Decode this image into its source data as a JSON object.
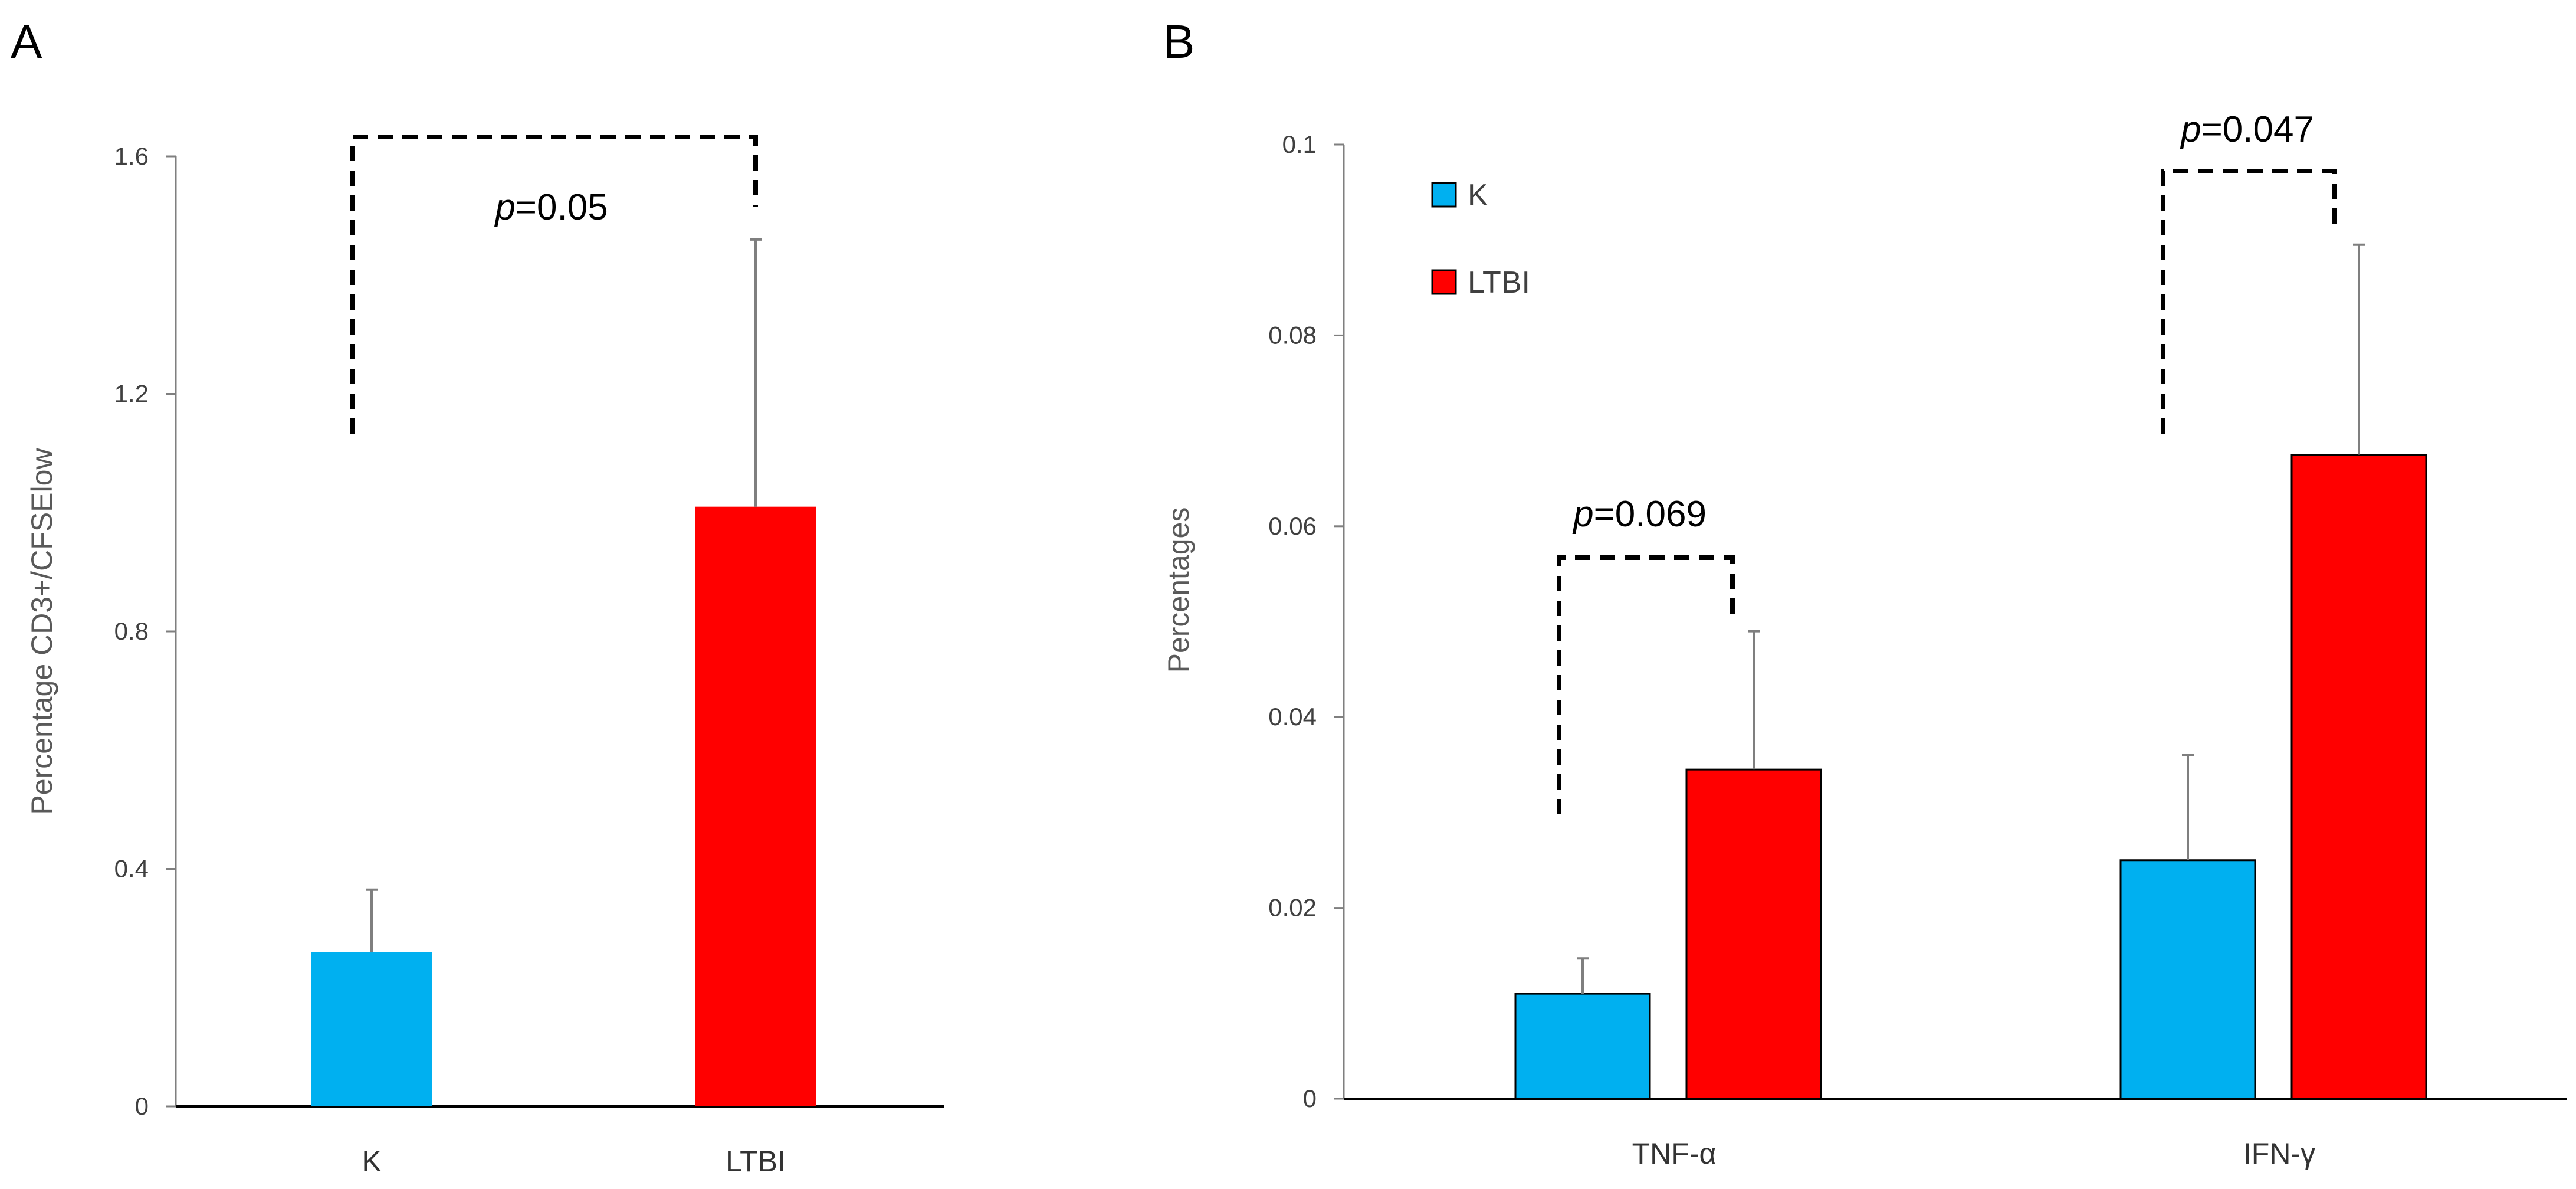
{
  "colors": {
    "K": "#00b0f0",
    "LTBI": "#ff0000",
    "error_bar": "#7f7f7f",
    "axis": "#000000",
    "bracket": "#000000"
  },
  "chart_data": [
    {
      "panel_label": "A",
      "type": "bar",
      "categories": [
        "K",
        "LTBI"
      ],
      "values": [
        0.26,
        1.01
      ],
      "errors": [
        0.105,
        0.45
      ],
      "ylabel": "Percentage CD3+/CFSElow",
      "ylim": [
        0,
        1.6
      ],
      "yticks": [
        0,
        0.4,
        0.8,
        1.2,
        1.6
      ],
      "ytick_labels": [
        "0",
        "0.4",
        "0.8",
        "1.2",
        "1.6"
      ],
      "grid": false,
      "annotations": [
        {
          "text_italic": "p",
          "text": "=0.05",
          "between": [
            "K",
            "LTBI"
          ]
        }
      ]
    },
    {
      "panel_label": "B",
      "type": "bar",
      "categories": [
        "TNF-α",
        "IFN-γ"
      ],
      "series": [
        {
          "name": "K",
          "values": [
            0.011,
            0.025
          ],
          "errors": [
            0.0037,
            0.011
          ]
        },
        {
          "name": "LTBI",
          "values": [
            0.0345,
            0.0675
          ],
          "errors": [
            0.0145,
            0.022
          ]
        }
      ],
      "ylabel": "Percentages",
      "ylim": [
        0,
        0.1
      ],
      "yticks": [
        0,
        0.02,
        0.04,
        0.06,
        0.08,
        0.1
      ],
      "ytick_labels": [
        "0",
        "0.02",
        "0.04",
        "0.06",
        "0.08",
        "0.1"
      ],
      "legend_position": "top-left",
      "grid": false,
      "annotations": [
        {
          "text_italic": "p",
          "text": "=0.069",
          "category": "TNF-α"
        },
        {
          "text_italic": "p",
          "text": "=0.047",
          "category": "IFN-γ"
        }
      ]
    }
  ]
}
